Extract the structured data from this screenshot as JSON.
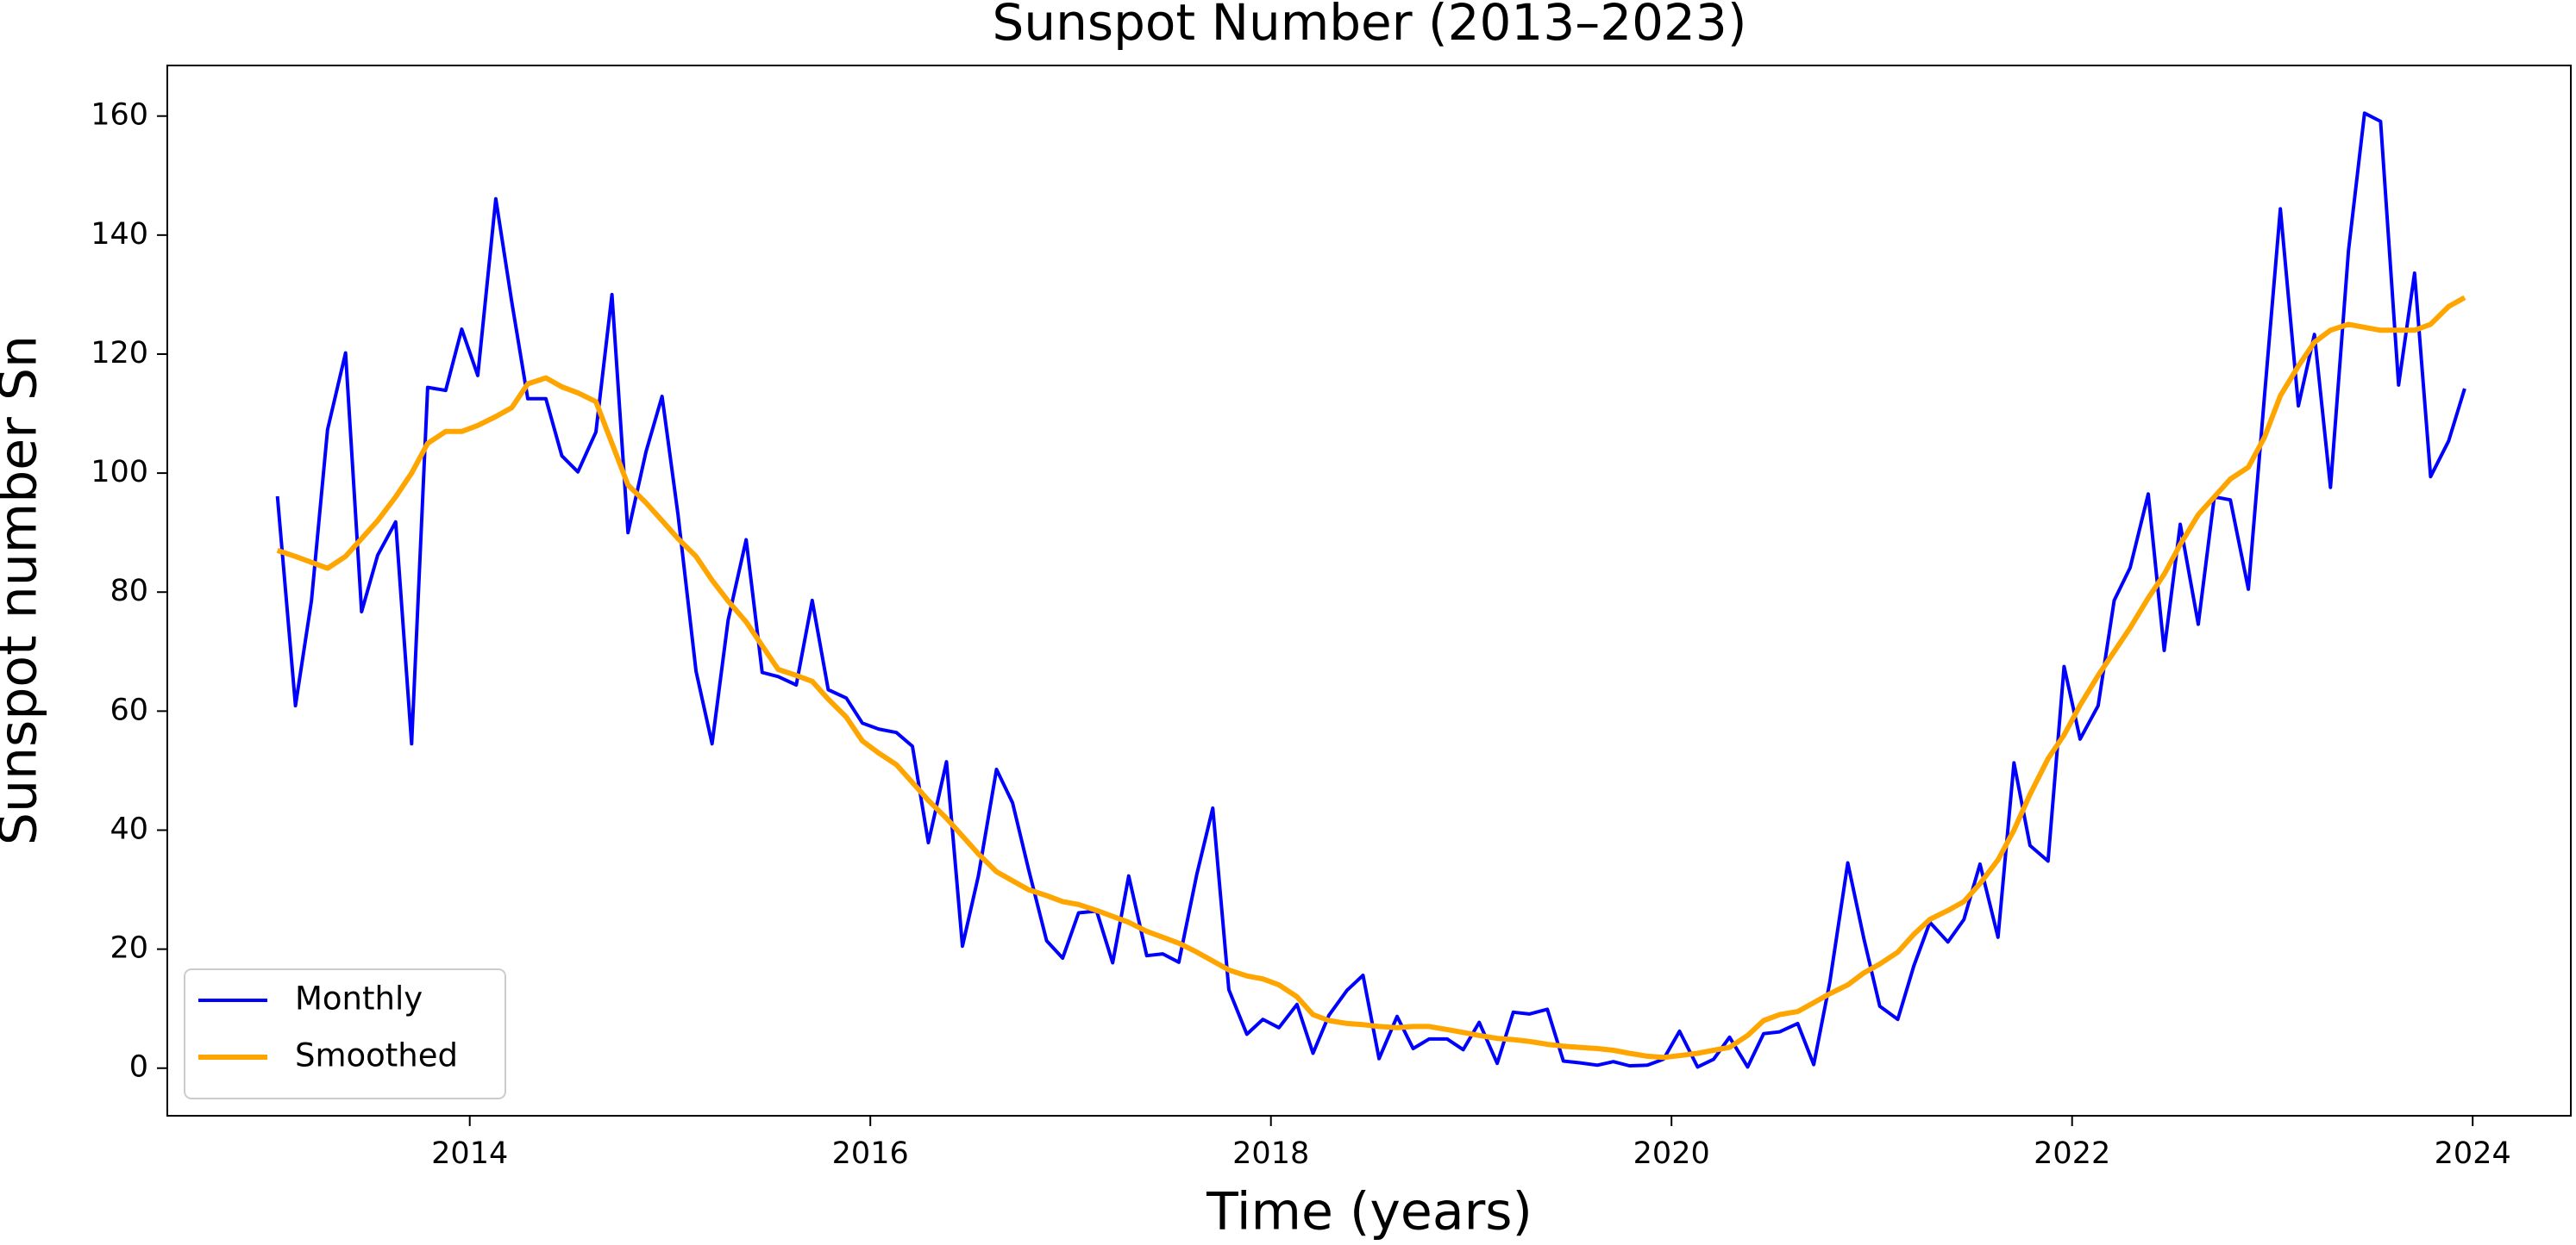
{
  "chart_data": {
    "type": "line",
    "title": "Sunspot Number (2013–2023)",
    "x_label": "Time (years)",
    "y_label": "Sunspot number Sn",
    "x": [
      2013.04,
      2013.13,
      2013.21,
      2013.29,
      2013.38,
      2013.46,
      2013.54,
      2013.63,
      2013.71,
      2013.79,
      2013.88,
      2013.96,
      2014.04,
      2014.13,
      2014.21,
      2014.29,
      2014.38,
      2014.46,
      2014.54,
      2014.63,
      2014.71,
      2014.79,
      2014.88,
      2014.96,
      2015.04,
      2015.13,
      2015.21,
      2015.29,
      2015.38,
      2015.46,
      2015.54,
      2015.63,
      2015.71,
      2015.79,
      2015.88,
      2015.96,
      2016.04,
      2016.13,
      2016.21,
      2016.29,
      2016.38,
      2016.46,
      2016.54,
      2016.63,
      2016.71,
      2016.79,
      2016.88,
      2016.96,
      2017.04,
      2017.13,
      2017.21,
      2017.29,
      2017.38,
      2017.46,
      2017.54,
      2017.63,
      2017.71,
      2017.79,
      2017.88,
      2017.96,
      2018.04,
      2018.13,
      2018.21,
      2018.29,
      2018.38,
      2018.46,
      2018.54,
      2018.63,
      2018.71,
      2018.79,
      2018.88,
      2018.96,
      2019.04,
      2019.13,
      2019.21,
      2019.29,
      2019.38,
      2019.46,
      2019.54,
      2019.63,
      2019.71,
      2019.79,
      2019.88,
      2019.96,
      2020.04,
      2020.13,
      2020.21,
      2020.29,
      2020.38,
      2020.46,
      2020.54,
      2020.63,
      2020.71,
      2020.79,
      2020.88,
      2020.96,
      2021.04,
      2021.13,
      2021.21,
      2021.29,
      2021.38,
      2021.46,
      2021.54,
      2021.63,
      2021.71,
      2021.79,
      2021.88,
      2021.96,
      2022.04,
      2022.13,
      2022.21,
      2022.29,
      2022.38,
      2022.46,
      2022.54,
      2022.63,
      2022.71,
      2022.79,
      2022.88,
      2022.96,
      2023.04,
      2023.13,
      2023.21,
      2023.29,
      2023.38,
      2023.46,
      2023.54,
      2023.63,
      2023.71,
      2023.79,
      2023.88,
      2023.96
    ],
    "series": [
      {
        "name": "Monthly",
        "color": "#0000ff",
        "values": [
          96.1,
          60.9,
          78.6,
          107.3,
          120.2,
          76.7,
          86.2,
          91.8,
          54.5,
          114.4,
          113.9,
          124.2,
          116.4,
          146.1,
          128.7,
          112.5,
          112.5,
          102.9,
          100.2,
          106.9,
          130.0,
          90.0,
          103.6,
          112.9,
          93.0,
          66.7,
          54.5,
          75.3,
          88.8,
          66.5,
          65.8,
          64.4,
          78.6,
          63.6,
          62.2,
          58.0,
          57.0,
          56.4,
          54.1,
          37.9,
          51.5,
          20.5,
          32.4,
          50.2,
          44.6,
          33.4,
          21.4,
          18.5,
          26.1,
          26.4,
          17.7,
          32.3,
          18.9,
          19.2,
          17.8,
          32.6,
          43.7,
          13.2,
          5.7,
          8.2,
          6.8,
          10.7,
          2.5,
          8.9,
          13.1,
          15.6,
          1.6,
          8.7,
          3.3,
          4.9,
          4.9,
          3.1,
          7.7,
          0.8,
          9.4,
          9.1,
          9.9,
          1.2,
          0.9,
          0.5,
          1.1,
          0.4,
          0.5,
          1.5,
          6.2,
          0.2,
          1.5,
          5.2,
          0.2,
          5.8,
          6.1,
          7.5,
          0.6,
          14.4,
          34.5,
          21.8,
          10.4,
          8.2,
          17.2,
          24.5,
          21.2,
          25.0,
          34.3,
          22.0,
          51.3,
          37.4,
          34.8,
          67.5,
          55.3,
          60.9,
          78.6,
          84.1,
          96.5,
          70.2,
          91.4,
          74.6,
          96.0,
          95.5,
          80.5,
          112.8,
          144.4,
          111.3,
          123.3,
          97.6,
          137.4,
          160.5,
          159.1,
          114.8,
          133.6,
          99.4,
          105.4,
          114.2
        ]
      },
      {
        "name": "Smoothed",
        "color": "#ffa500",
        "values": [
          87,
          86,
          85,
          84,
          86,
          89,
          92,
          96,
          100,
          105,
          107,
          107,
          108,
          109.5,
          111,
          115,
          116,
          114.5,
          113.5,
          112,
          105,
          98,
          95,
          92,
          89,
          86,
          82,
          78.5,
          75,
          71,
          67,
          66,
          65,
          62,
          59,
          55,
          53,
          51,
          48,
          45,
          42,
          39,
          36,
          33,
          31.5,
          30,
          29,
          28,
          27.5,
          26.5,
          25.5,
          24.5,
          23,
          22,
          21,
          19.5,
          18,
          16.5,
          15.5,
          15,
          14,
          12,
          9,
          8,
          7.5,
          7.3,
          7,
          6.8,
          7,
          7,
          6.5,
          6,
          5.5,
          5,
          4.8,
          4.5,
          4,
          3.7,
          3.5,
          3.3,
          3,
          2.5,
          2,
          1.8,
          2.1,
          2.5,
          3,
          3.5,
          5.5,
          8,
          9,
          9.5,
          11,
          12.5,
          14,
          16,
          17.5,
          19.5,
          22.5,
          25,
          26.5,
          28,
          31,
          35,
          40,
          46,
          52,
          56,
          61,
          66,
          70,
          74,
          79,
          83,
          88,
          93,
          96,
          99,
          101,
          106,
          113,
          118,
          122,
          124,
          125,
          124.5,
          124,
          124,
          124,
          125,
          128,
          129.5
        ]
      }
    ],
    "xlim": [
      2012.49,
      2024.49
    ],
    "xticks": [
      2014,
      2016,
      2018,
      2020,
      2022,
      2024
    ],
    "ylim": [
      -8,
      168.5
    ],
    "yticks": [
      0,
      20,
      40,
      60,
      80,
      100,
      120,
      140,
      160
    ],
    "grid": false,
    "legend": "lower left"
  }
}
